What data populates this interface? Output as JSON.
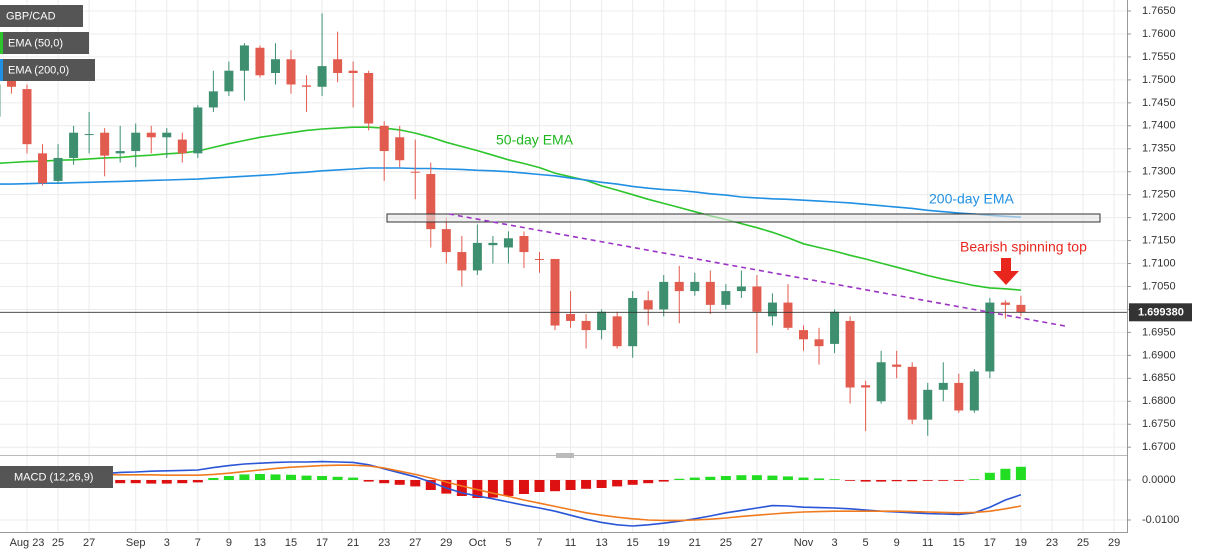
{
  "chart_data": [
    {
      "type": "candlestick",
      "title": "GBP/CAD",
      "categories": [
        null,
        null,
        "Aug 23",
        null,
        "25",
        null,
        "27",
        null,
        null,
        "Sep",
        null,
        "3",
        null,
        "7",
        null,
        "9",
        null,
        "13",
        null,
        "15",
        null,
        "17",
        null,
        "21",
        null,
        "23",
        null,
        "27",
        null,
        "29",
        null,
        "Oct",
        null,
        "5",
        null,
        "7",
        null,
        "11",
        null,
        "13",
        null,
        "15",
        null,
        "19",
        null,
        "21",
        null,
        "25",
        null,
        "27",
        null,
        null,
        "Nov",
        null,
        "3",
        null,
        "5",
        null,
        "9",
        null,
        "11",
        null,
        "15",
        null,
        "17",
        null,
        "19",
        null,
        "23",
        null,
        "25",
        null,
        "29"
      ],
      "open": [
        1.742,
        1.75,
        1.748,
        1.734,
        1.728,
        1.733,
        1.738,
        1.7385,
        1.734,
        1.7345,
        1.7385,
        1.7375,
        1.737,
        1.734,
        1.744,
        1.7475,
        1.752,
        1.757,
        1.7515,
        1.7545,
        1.7488,
        1.7485,
        1.7545,
        1.752,
        1.7515,
        1.74,
        1.7375,
        1.73,
        1.7295,
        1.7175,
        1.7125,
        1.7085,
        1.714,
        1.7135,
        1.716,
        1.711,
        1.711,
        1.699,
        1.6975,
        1.6955,
        1.6985,
        1.692,
        1.702,
        1.7,
        1.706,
        1.704,
        1.706,
        1.701,
        1.704,
        1.705,
        1.6985,
        1.7015,
        1.6955,
        1.6935,
        1.6925,
        1.6975,
        1.6835,
        1.68,
        1.688,
        1.6875,
        1.676,
        1.6825,
        1.684,
        1.678,
        1.6865,
        1.7015,
        1.701,
        null,
        null,
        null,
        null,
        null,
        null
      ],
      "high": [
        1.75,
        1.753,
        1.749,
        1.736,
        1.736,
        1.74,
        1.743,
        1.7395,
        1.74,
        1.7405,
        1.74,
        1.7395,
        1.7385,
        1.7445,
        1.752,
        1.754,
        1.758,
        1.7575,
        1.758,
        1.7565,
        1.751,
        1.7645,
        1.7605,
        1.754,
        1.752,
        1.741,
        1.74,
        1.737,
        1.732,
        1.72,
        1.716,
        1.7185,
        1.716,
        1.717,
        1.717,
        1.7125,
        1.711,
        1.704,
        1.699,
        1.7,
        1.6995,
        1.704,
        1.704,
        1.7075,
        1.7095,
        1.708,
        1.7085,
        1.7055,
        1.7085,
        1.7075,
        1.7035,
        1.7055,
        1.6965,
        1.696,
        1.7,
        1.6985,
        1.6845,
        1.691,
        1.691,
        1.6885,
        1.684,
        1.6885,
        1.686,
        1.687,
        1.7025,
        1.702,
        1.703,
        null,
        null,
        null,
        null,
        null,
        null
      ],
      "low": [
        1.74,
        1.747,
        1.734,
        1.727,
        1.7275,
        1.7315,
        1.734,
        1.729,
        1.732,
        1.731,
        1.734,
        1.733,
        1.732,
        1.733,
        1.743,
        1.7465,
        1.7455,
        1.7505,
        1.749,
        1.747,
        1.743,
        1.7465,
        1.7495,
        1.744,
        1.739,
        1.728,
        1.731,
        1.724,
        1.7135,
        1.71,
        1.705,
        1.7075,
        1.71,
        1.71,
        1.709,
        1.708,
        1.6955,
        1.696,
        1.6915,
        1.6935,
        1.6915,
        1.6895,
        1.6965,
        1.6985,
        1.697,
        1.703,
        1.699,
        1.7,
        1.7025,
        1.6905,
        1.6965,
        1.6955,
        1.691,
        1.688,
        1.6905,
        1.6795,
        1.6735,
        1.6795,
        1.685,
        1.675,
        1.6725,
        1.68,
        1.6775,
        1.6775,
        1.685,
        1.698,
        1.6985,
        null,
        null,
        null,
        null,
        null,
        null
      ],
      "close": [
        1.749,
        1.7485,
        1.736,
        1.7275,
        1.733,
        1.7385,
        1.7382,
        1.7335,
        1.7345,
        1.7385,
        1.7375,
        1.7385,
        1.734,
        1.744,
        1.7475,
        1.752,
        1.7575,
        1.751,
        1.7545,
        1.749,
        1.7485,
        1.753,
        1.7515,
        1.7515,
        1.7405,
        1.7345,
        1.7325,
        1.7298,
        1.7175,
        1.7125,
        1.7085,
        1.7145,
        1.7145,
        1.7155,
        1.7125,
        1.7108,
        1.6965,
        1.6975,
        1.6955,
        1.6995,
        1.692,
        1.7025,
        1.7,
        1.706,
        1.704,
        1.706,
        1.701,
        1.704,
        1.705,
        1.6995,
        1.7015,
        1.696,
        1.6935,
        1.692,
        1.6995,
        1.683,
        1.683,
        1.6885,
        1.6875,
        1.676,
        1.6825,
        1.684,
        1.678,
        1.6865,
        1.7015,
        1.701,
        1.69938,
        null,
        null,
        null,
        null,
        null,
        null
      ],
      "up_color": "#3d8f70",
      "down_color": "#e25b4f",
      "series": [
        {
          "name": "EMA (50,0)",
          "color": "#2cc52c",
          "values": [
            1.7318,
            1.732,
            1.7322,
            1.7323,
            1.7325,
            1.7326,
            1.7328,
            1.733,
            1.7331,
            1.7334,
            1.7336,
            1.7339,
            1.7341,
            1.7345,
            1.7353,
            1.7361,
            1.7368,
            1.7375,
            1.738,
            1.7385,
            1.739,
            1.7393,
            1.7395,
            1.7397,
            1.7397,
            1.7395,
            1.7391,
            1.7384,
            1.7375,
            1.7364,
            1.7355,
            1.7346,
            1.7336,
            1.7326,
            1.7318,
            1.7309,
            1.7297,
            1.7289,
            1.7281,
            1.7269,
            1.726,
            1.725,
            1.724,
            1.7231,
            1.7222,
            1.7213,
            1.7204,
            1.7196,
            1.7187,
            1.7178,
            1.7168,
            1.7156,
            1.7143,
            1.7135,
            1.7127,
            1.7118,
            1.711,
            1.7101,
            1.7092,
            1.7083,
            1.7074,
            1.7066,
            1.7059,
            1.7052,
            1.7047,
            1.7045,
            1.7042,
            null,
            null,
            null,
            null,
            null,
            null
          ]
        },
        {
          "name": "EMA (200,0)",
          "color": "#2190e3",
          "values": [
            1.7273,
            1.7273,
            1.7274,
            1.7275,
            1.7275,
            1.7276,
            1.7277,
            1.7278,
            1.7279,
            1.728,
            1.7281,
            1.7282,
            1.7283,
            1.7284,
            1.7286,
            1.7288,
            1.729,
            1.7292,
            1.7294,
            1.7297,
            1.7299,
            1.7302,
            1.7304,
            1.7306,
            1.7308,
            1.7308,
            1.7308,
            1.7307,
            1.7307,
            1.7306,
            1.7305,
            1.7303,
            1.7302,
            1.73,
            1.7297,
            1.7294,
            1.7291,
            1.7286,
            1.7282,
            1.7277,
            1.7273,
            1.7268,
            1.7264,
            1.7261,
            1.7259,
            1.7256,
            1.7252,
            1.7249,
            1.7245,
            1.7243,
            1.7241,
            1.724,
            1.7238,
            1.7236,
            1.7234,
            1.7232,
            1.7229,
            1.7226,
            1.7223,
            1.722,
            1.7216,
            1.7213,
            1.721,
            1.7208,
            1.7205,
            1.7203,
            1.7201,
            null,
            null,
            null,
            null,
            null,
            null
          ]
        }
      ],
      "ylim": [
        1.6683,
        1.7674
      ],
      "yticks": [
        {
          "value": 1.67,
          "label": "1.6700"
        },
        {
          "value": 1.675,
          "label": "1.6750"
        },
        {
          "value": 1.68,
          "label": "1.6800"
        },
        {
          "value": 1.685,
          "label": "1.6850"
        },
        {
          "value": 1.69,
          "label": "1.6900"
        },
        {
          "value": 1.695,
          "label": "1.6950"
        },
        {
          "value": 1.7,
          "label": "1.7000"
        },
        {
          "value": 1.705,
          "label": "1.7050"
        },
        {
          "value": 1.71,
          "label": "1.7100"
        },
        {
          "value": 1.715,
          "label": "1.7150"
        },
        {
          "value": 1.72,
          "label": "1.7200"
        },
        {
          "value": 1.725,
          "label": "1.7250"
        },
        {
          "value": 1.73,
          "label": "1.7300"
        },
        {
          "value": 1.735,
          "label": "1.7350"
        },
        {
          "value": 1.74,
          "label": "1.7400"
        },
        {
          "value": 1.745,
          "label": "1.7450"
        },
        {
          "value": 1.75,
          "label": "1.7500"
        },
        {
          "value": 1.755,
          "label": "1.7550"
        },
        {
          "value": 1.76,
          "label": "1.7600"
        },
        {
          "value": 1.765,
          "label": "1.7650"
        }
      ],
      "last_price": {
        "value": 1.69938,
        "label": "1.699380"
      },
      "grid": true,
      "annotations": [
        "50-day EMA",
        "200-day EMA",
        "Bearish spinning top"
      ]
    },
    {
      "type": "macd",
      "title": "MACD (12,26,9)",
      "histogram": [
        -0.0012,
        -0.0012,
        -0.0011,
        -0.001,
        -0.0009,
        -0.0008,
        -0.0007,
        -0.0007,
        -0.0008,
        -0.0008,
        -0.0009,
        -0.0009,
        -0.0008,
        -0.0006,
        0.0005,
        0.001,
        0.0014,
        0.0015,
        0.0014,
        0.0013,
        0.0011,
        0.001,
        0.0008,
        0.0006,
        -0.0004,
        -0.0008,
        -0.0012,
        -0.0016,
        -0.0025,
        -0.0034,
        -0.004,
        -0.0045,
        -0.0044,
        -0.004,
        -0.0035,
        -0.003,
        -0.0028,
        -0.0025,
        -0.0022,
        -0.002,
        -0.0016,
        -0.0012,
        -0.0008,
        -0.0004,
        0.0003,
        0.0006,
        0.0008,
        0.001,
        0.0012,
        0.0012,
        0.0011,
        0.0009,
        0.0006,
        0.0004,
        0.0002,
        -0.0002,
        -0.0004,
        -0.0004,
        -0.0003,
        -0.0003,
        -0.0002,
        -0.0002,
        -0.0002,
        0.0002,
        0.0018,
        0.0028,
        0.0033,
        null,
        null,
        null,
        null,
        null,
        null
      ],
      "up_color": "#22dd22",
      "down_color": "#dd1111",
      "series": [
        {
          "color": "#2a55d6",
          "values": [
            0.0005,
            0.0006,
            0.0007,
            0.0008,
            0.001,
            0.0012,
            0.0014,
            0.0016,
            0.0019,
            0.002,
            0.0022,
            0.0023,
            0.0024,
            0.0025,
            0.0031,
            0.0036,
            0.004,
            0.0042,
            0.0044,
            0.0045,
            0.0045,
            0.0046,
            0.0045,
            0.0044,
            0.0038,
            0.0028,
            0.0018,
            0.0008,
            -0.0005,
            -0.002,
            -0.0032,
            -0.004,
            -0.0047,
            -0.0055,
            -0.0063,
            -0.007,
            -0.0078,
            -0.0088,
            -0.0098,
            -0.0106,
            -0.0112,
            -0.0115,
            -0.0112,
            -0.0108,
            -0.0103,
            -0.0097,
            -0.009,
            -0.0082,
            -0.0076,
            -0.007,
            -0.0064,
            -0.0065,
            -0.0068,
            -0.0069,
            -0.007,
            -0.0072,
            -0.0075,
            -0.0078,
            -0.008,
            -0.0082,
            -0.0084,
            -0.0085,
            -0.0086,
            -0.0082,
            -0.0068,
            -0.005,
            -0.0037,
            null,
            null,
            null,
            null,
            null,
            null
          ]
        },
        {
          "color": "#f07b1f",
          "values": [
            0.002,
            0.0019,
            0.0018,
            0.0017,
            0.0016,
            0.0015,
            0.0014,
            0.0014,
            0.0013,
            0.0013,
            0.0013,
            0.0012,
            0.0012,
            0.0012,
            0.0014,
            0.0017,
            0.0021,
            0.0025,
            0.0029,
            0.0032,
            0.0034,
            0.0036,
            0.0037,
            0.0037,
            0.0035,
            0.003,
            0.0022,
            0.0014,
            0.0005,
            -0.0005,
            -0.0015,
            -0.0024,
            -0.0033,
            -0.0041,
            -0.005,
            -0.0058,
            -0.0066,
            -0.0074,
            -0.0082,
            -0.0088,
            -0.0093,
            -0.0097,
            -0.01,
            -0.0101,
            -0.0101,
            -0.01,
            -0.0098,
            -0.0095,
            -0.0091,
            -0.0088,
            -0.0085,
            -0.0082,
            -0.008,
            -0.0079,
            -0.0078,
            -0.0078,
            -0.0078,
            -0.0078,
            -0.0078,
            -0.0079,
            -0.008,
            -0.0081,
            -0.0082,
            -0.0081,
            -0.0078,
            -0.0072,
            -0.0065,
            null,
            null,
            null,
            null,
            null,
            null
          ]
        }
      ],
      "ylim": [
        -0.013,
        0.0045
      ],
      "yticks": [
        {
          "value": 0,
          "label": "0.0000"
        },
        {
          "value": -0.01,
          "label": "-0.0100"
        }
      ]
    }
  ]
}
